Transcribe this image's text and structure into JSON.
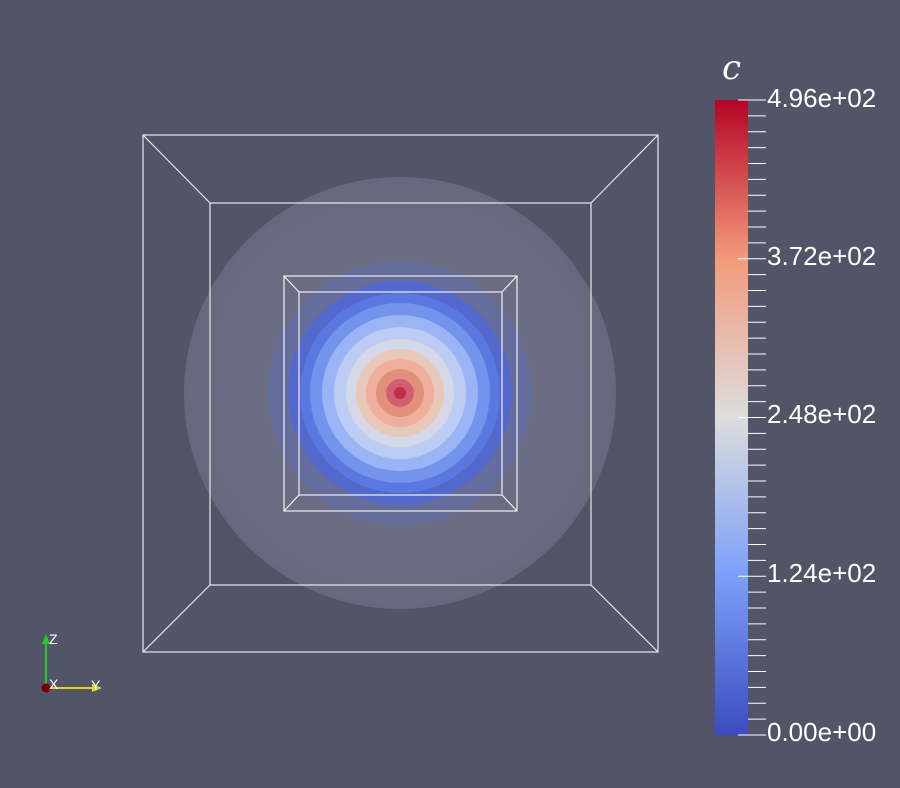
{
  "colorbar": {
    "title": "c",
    "ticks": [
      "4.96e+02",
      "3.72e+02",
      "2.48e+02",
      "1.24e+02",
      "0.00e+00"
    ],
    "range": [
      0,
      496
    ],
    "colormap": "cool-to-warm",
    "colors": {
      "low": "#3b4cc0",
      "mid": "#dddddd",
      "high": "#b40426"
    }
  },
  "orientation_axes": {
    "z": "Z",
    "x": "X",
    "y": "Y"
  },
  "colors": {
    "background": "#525468",
    "wireframe": "#e8e8ee"
  }
}
